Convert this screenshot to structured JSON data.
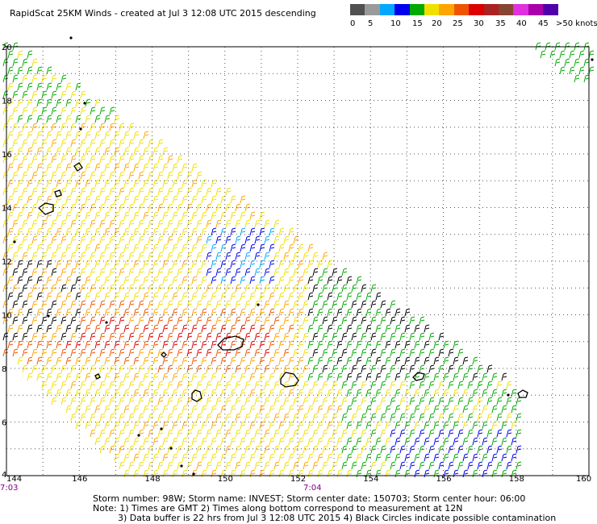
{
  "title": "RapidScat 25KM Winds - created at Jul  3 12:08 UTC 2015 descending",
  "legend": {
    "colors": [
      "#505050",
      "#9a9a9a",
      "#00a8ff",
      "#0000ee",
      "#00aa00",
      "#f0e000",
      "#ffa500",
      "#ee5500",
      "#dd0000",
      "#aa2222",
      "#884433",
      "#e030e0",
      "#aa00aa",
      "#5000aa"
    ],
    "labels": [
      "0",
      "5",
      "10",
      "15",
      "20",
      "25",
      "30",
      "35",
      "40",
      "45",
      ">50 knots"
    ]
  },
  "axes": {
    "x_ticks": [
      "144",
      "146",
      "148",
      "150",
      "152",
      "154",
      "156",
      "158",
      "160"
    ],
    "y_ticks": [
      "20",
      "18",
      "16",
      "14",
      "12",
      "10",
      "8",
      "6",
      "4"
    ],
    "x_range": [
      144,
      160
    ],
    "y_range": [
      4,
      20
    ],
    "grid": true
  },
  "times": [
    "7:03",
    "7:04"
  ],
  "footer": {
    "line1": "Storm number: 98W;  Storm name: INVEST;  Storm center date: 150703;  Storm center hour: 06:00",
    "line2": "Note: 1) Times are GMT  2) Times along bottom correspond to measurement at 12N",
    "line3": "3) Data buffer is 22 hrs from Jul  3 12:08 UTC 2015  4) Black Circles indicate possible contamination"
  }
}
